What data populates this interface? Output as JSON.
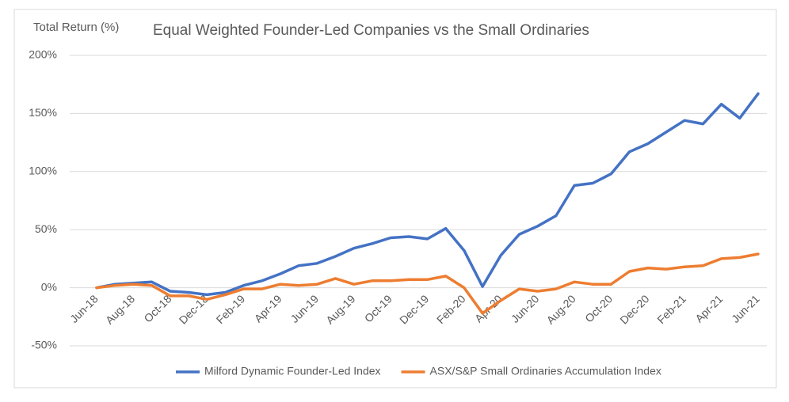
{
  "chart_data": {
    "type": "line",
    "y_axis_title": "Total Return (%)",
    "title": "Equal Weighted Founder-Led Companies vs the Small Ordinaries",
    "categories": [
      "Jun-18",
      null,
      "Aug-18",
      null,
      "Oct-18",
      null,
      "Dec-18",
      null,
      "Feb-19",
      null,
      "Apr-19",
      null,
      "Jun-19",
      null,
      "Aug-19",
      null,
      "Oct-19",
      null,
      "Dec-19",
      null,
      "Feb-20",
      null,
      "Apr-20",
      null,
      "Jun-20",
      null,
      "Aug-20",
      null,
      "Oct-20",
      null,
      "Dec-20",
      null,
      "Feb-21",
      null,
      "Apr-21",
      null,
      "Jun-21"
    ],
    "series": [
      {
        "name": "Milford Dynamic Founder-Led Index",
        "color": "#4472c4",
        "values": [
          0,
          3,
          4,
          5,
          -3,
          -4,
          -6,
          -4,
          2,
          6,
          12,
          19,
          21,
          27,
          34,
          38,
          43,
          44,
          42,
          51,
          32,
          1,
          28,
          46,
          53,
          62,
          88,
          90,
          98,
          117,
          124,
          134,
          144,
          141,
          158,
          146,
          167
        ]
      },
      {
        "name": "ASX/S&P Small Ordinaries Accumulation Index",
        "color": "#ed7d31",
        "values": [
          0,
          2,
          3,
          2,
          -7,
          -7,
          -10,
          -6,
          -1,
          -1,
          3,
          2,
          3,
          8,
          3,
          6,
          6,
          7,
          7,
          10,
          0,
          -22,
          -11,
          -1,
          -3,
          -1,
          5,
          3,
          3,
          14,
          17,
          16,
          18,
          19,
          25,
          26,
          29
        ]
      }
    ],
    "ylim": [
      -50,
      200
    ],
    "yticks": [
      {
        "value": -50,
        "label": "-50%"
      },
      {
        "value": 0,
        "label": "0%"
      },
      {
        "value": 50,
        "label": "50%"
      },
      {
        "value": 100,
        "label": "100%"
      },
      {
        "value": 150,
        "label": "150%"
      },
      {
        "value": 200,
        "label": "200%"
      }
    ],
    "grid": true,
    "legend": "bottom"
  }
}
